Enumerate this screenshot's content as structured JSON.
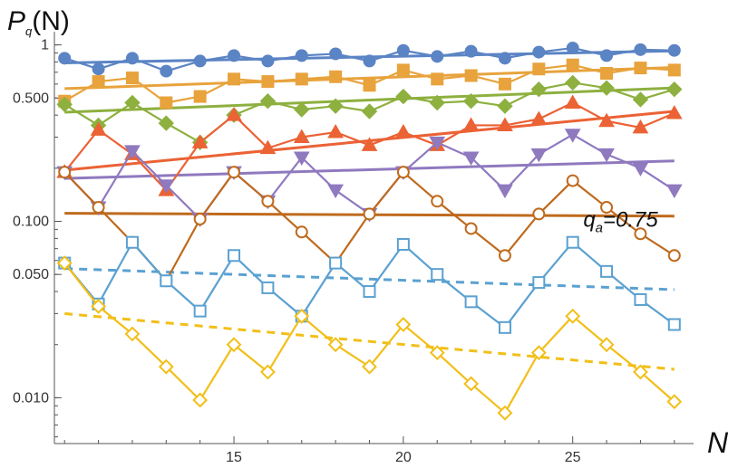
{
  "chart_data": {
    "type": "line",
    "title": "",
    "ylabel": "P_q(N)",
    "xlabel": "N",
    "yscale": "log",
    "xlim": [
      9.7,
      28.3
    ],
    "ylim": [
      0.0055,
      1.12
    ],
    "xticks": [
      15,
      20,
      25
    ],
    "yticks": [
      {
        "value": 1,
        "label": "1"
      },
      {
        "value": 0.5,
        "label": "0.500"
      },
      {
        "value": 0.1,
        "label": "0.100"
      },
      {
        "value": 0.05,
        "label": "0.050"
      },
      {
        "value": 0.01,
        "label": "0.010"
      }
    ],
    "grid": false,
    "annotation": {
      "text": "q_a=0.75",
      "x": 25.9,
      "y": 0.083
    },
    "x": [
      10,
      11,
      12,
      13,
      14,
      15,
      16,
      17,
      18,
      19,
      20,
      21,
      22,
      23,
      24,
      25,
      26,
      27,
      28
    ],
    "series": [
      {
        "color": "#5B84C4",
        "marker": "circle-filled",
        "values": [
          0.84,
          0.73,
          0.84,
          0.71,
          0.81,
          0.87,
          0.81,
          0.87,
          0.89,
          0.81,
          0.93,
          0.86,
          0.92,
          0.84,
          0.91,
          0.96,
          0.87,
          0.94,
          0.93
        ],
        "fit": [
          0.79,
          0.925
        ]
      },
      {
        "color": "#E8A33D",
        "marker": "square-filled",
        "values": [
          0.48,
          0.62,
          0.65,
          0.47,
          0.51,
          0.64,
          0.62,
          0.64,
          0.66,
          0.59,
          0.72,
          0.64,
          0.67,
          0.6,
          0.73,
          0.77,
          0.69,
          0.74,
          0.72
        ],
        "fit": [
          0.565,
          0.745
        ]
      },
      {
        "color": "#8DB03F",
        "marker": "diamond-filled",
        "values": [
          0.46,
          0.35,
          0.47,
          0.36,
          0.28,
          0.4,
          0.48,
          0.43,
          0.45,
          0.42,
          0.51,
          0.47,
          0.48,
          0.45,
          0.56,
          0.61,
          0.57,
          0.49,
          0.56
        ],
        "fit": [
          0.415,
          0.57
        ]
      },
      {
        "color": "#EB6235",
        "marker": "triangle-up-filled",
        "values": [
          0.19,
          0.33,
          0.24,
          0.15,
          0.28,
          0.4,
          0.26,
          0.3,
          0.32,
          0.27,
          0.32,
          0.27,
          0.35,
          0.35,
          0.38,
          0.47,
          0.37,
          0.34,
          0.41
        ],
        "fit": [
          0.195,
          0.42
        ]
      },
      {
        "color": "#8F79BF",
        "marker": "triangle-down-filled",
        "values": [
          0.19,
          0.12,
          0.25,
          0.16,
          0.103,
          0.19,
          0.13,
          0.23,
          0.15,
          0.11,
          0.19,
          0.28,
          0.23,
          0.15,
          0.24,
          0.31,
          0.24,
          0.2,
          0.15
        ],
        "fit": [
          0.175,
          0.22
        ]
      },
      {
        "color": "#BF6A1D",
        "marker": "circle-open",
        "values": [
          0.19,
          0.12,
          0.076,
          0.046,
          0.103,
          0.19,
          0.13,
          0.087,
          0.058,
          0.11,
          0.19,
          0.13,
          0.091,
          0.064,
          0.11,
          0.17,
          0.12,
          0.085,
          0.064
        ],
        "fit": [
          0.111,
          0.107
        ]
      },
      {
        "color": "#5BA1D1",
        "marker": "square-open",
        "values": [
          0.058,
          0.034,
          0.076,
          0.046,
          0.031,
          0.064,
          0.042,
          0.029,
          0.058,
          0.04,
          0.074,
          0.05,
          0.035,
          0.025,
          0.045,
          0.076,
          0.052,
          0.036,
          0.026
        ],
        "fit": [
          0.054,
          0.041
        ],
        "fit_style": "dashed"
      },
      {
        "color": "#F2BF18",
        "marker": "diamond-open",
        "values": [
          0.058,
          0.033,
          0.023,
          0.015,
          0.0097,
          0.02,
          0.014,
          0.029,
          0.02,
          0.015,
          0.026,
          0.018,
          0.012,
          0.0082,
          0.018,
          0.029,
          0.02,
          0.014,
          0.0095
        ],
        "fit": [
          0.03,
          0.0145
        ],
        "fit_style": "dashed"
      }
    ]
  }
}
